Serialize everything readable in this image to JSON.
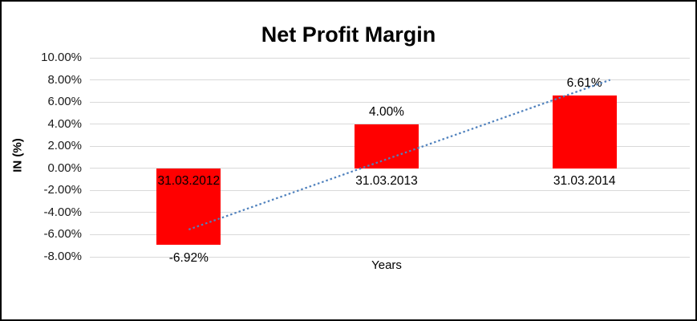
{
  "chart_data": {
    "type": "bar",
    "title": "Net Profit Margin",
    "xlabel": "Years",
    "ylabel": "IN (%)",
    "categories": [
      "31.03.2012",
      "31.03.2013",
      "31.03.2014"
    ],
    "values": [
      -6.92,
      4.0,
      6.61
    ],
    "value_labels": [
      "-6.92%",
      "4.00%",
      "6.61%"
    ],
    "series": [
      {
        "name": "Net Profit Margin",
        "values": [
          -6.92,
          4.0,
          6.61
        ]
      }
    ],
    "ylim": [
      -8,
      10
    ],
    "ytick_step": 2,
    "ytick_labels": [
      "10.00%",
      "8.00%",
      "6.00%",
      "4.00%",
      "2.00%",
      "0.00%",
      "-2.00%",
      "-4.00%",
      "-6.00%",
      "-8.00%"
    ],
    "grid": true,
    "legend": "none",
    "bar_color": "#ff0000",
    "gridline_color": "#d9d9d9",
    "trendline": {
      "style": "dotted",
      "color": "#4f81bd",
      "start_value": -5.53,
      "end_value": 8.0
    }
  }
}
